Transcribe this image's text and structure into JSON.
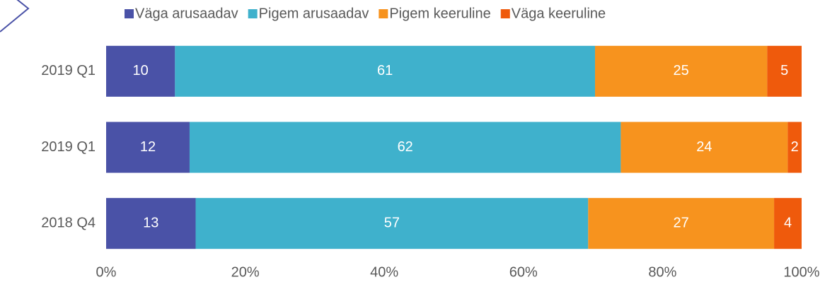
{
  "chart_data": {
    "type": "bar",
    "orientation": "horizontal",
    "stacked": "percent",
    "categories": [
      "2019 Q1",
      "2019 Q1",
      "2018 Q4"
    ],
    "series": [
      {
        "name": "Väga arusaadav",
        "color": "#4a52a7",
        "values": [
          10,
          12,
          13
        ]
      },
      {
        "name": "Pigem arusaadav",
        "color": "#3fb1cc",
        "values": [
          61,
          62,
          57
        ]
      },
      {
        "name": "Pigem keeruline",
        "color": "#f7931e",
        "values": [
          25,
          24,
          27
        ]
      },
      {
        "name": "Väga keeruline",
        "color": "#ef5a0c",
        "values": [
          5,
          2,
          4
        ]
      }
    ],
    "xlim": [
      0,
      100
    ],
    "xticks": [
      {
        "value": 0,
        "label": "0%"
      },
      {
        "value": 20,
        "label": "20%"
      },
      {
        "value": 40,
        "label": "40%"
      },
      {
        "value": 60,
        "label": "60%"
      },
      {
        "value": 80,
        "label": "80%"
      },
      {
        "value": 100,
        "label": "100%"
      }
    ],
    "legend": "top"
  }
}
